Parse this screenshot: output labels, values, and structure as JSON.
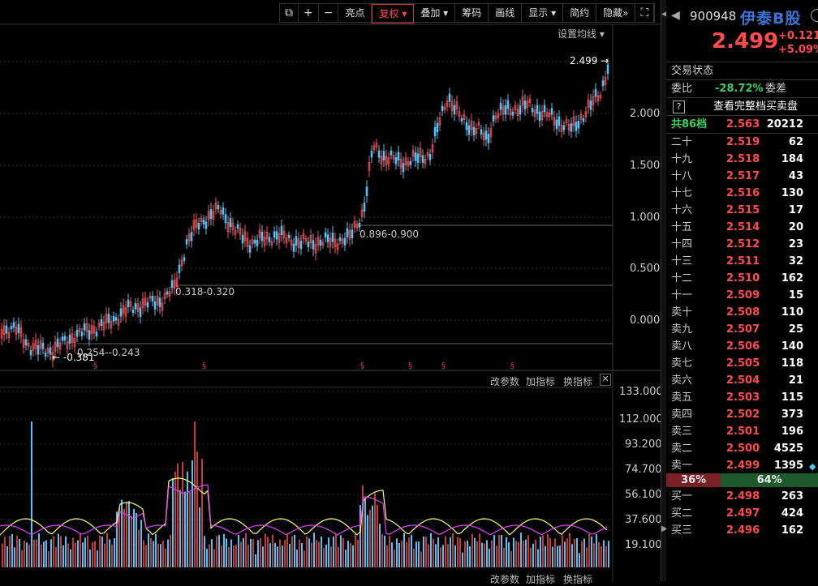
{
  "toolbar": {
    "items": [
      "⧉",
      "+",
      "−",
      "亮点",
      "复权",
      "叠加",
      "筹码",
      "画线",
      "显示",
      "简约",
      "隐藏",
      "»",
      "⛶"
    ]
  },
  "chart": {
    "set_ma_label": "设置均线 ▾",
    "high_marker": "2.499 →",
    "low_marker": "← -0.381",
    "price_ticks": [
      "2.000",
      "1.500",
      "1.000",
      "0.500",
      "0.000"
    ],
    "range_labels": [
      "0.896-0.900",
      "0.318-0.320",
      "0.254--0.243"
    ],
    "volume_toolbar": [
      "改参数",
      "加指标",
      "换指标"
    ],
    "volume_ticks": [
      "133.000",
      "112.000",
      "93.200",
      "74.700",
      "56.100",
      "37.600",
      "19.100"
    ],
    "bottom_toolbar": [
      "改参数",
      "加指标",
      "换指标"
    ]
  },
  "quote": {
    "code": "900948",
    "name": "伊泰B股",
    "price": "2.499",
    "change": "+0.121",
    "change_pct": "+5.09%",
    "trade_status_label": "交易状态",
    "trade_status_value": "",
    "weibi_label": "委比",
    "weibi_value": "-28.72%",
    "weicha_label": "委差",
    "full_book_label": "查看完整档买卖盘",
    "total_label": "共86档",
    "total_price": "2.563",
    "total_vol": "20212",
    "asks": [
      {
        "label": "二十",
        "price": "2.519",
        "vol": "62"
      },
      {
        "label": "十九",
        "price": "2.518",
        "vol": "184"
      },
      {
        "label": "十八",
        "price": "2.517",
        "vol": "43"
      },
      {
        "label": "十七",
        "price": "2.516",
        "vol": "130"
      },
      {
        "label": "十六",
        "price": "2.515",
        "vol": "17"
      },
      {
        "label": "十五",
        "price": "2.514",
        "vol": "20"
      },
      {
        "label": "十四",
        "price": "2.512",
        "vol": "23"
      },
      {
        "label": "十三",
        "price": "2.511",
        "vol": "32"
      },
      {
        "label": "十二",
        "price": "2.510",
        "vol": "162"
      },
      {
        "label": "十一",
        "price": "2.509",
        "vol": "15"
      },
      {
        "label": "卖十",
        "price": "2.508",
        "vol": "110"
      },
      {
        "label": "卖九",
        "price": "2.507",
        "vol": "25"
      },
      {
        "label": "卖八",
        "price": "2.506",
        "vol": "140"
      },
      {
        "label": "卖七",
        "price": "2.505",
        "vol": "118"
      },
      {
        "label": "卖六",
        "price": "2.504",
        "vol": "21"
      },
      {
        "label": "卖五",
        "price": "2.503",
        "vol": "115"
      },
      {
        "label": "卖四",
        "price": "2.502",
        "vol": "373"
      },
      {
        "label": "卖三",
        "price": "2.501",
        "vol": "196"
      },
      {
        "label": "卖二",
        "price": "2.500",
        "vol": "4525"
      },
      {
        "label": "卖一",
        "price": "2.499",
        "vol": "1395"
      }
    ],
    "ratio_left": "36%",
    "ratio_left_fraction": 0.36,
    "ratio_right": "64%",
    "bids": [
      {
        "label": "买一",
        "price": "2.498",
        "vol": "263"
      },
      {
        "label": "买二",
        "price": "2.497",
        "vol": "424"
      },
      {
        "label": "买三",
        "price": "2.496",
        "vol": "162"
      }
    ]
  }
}
